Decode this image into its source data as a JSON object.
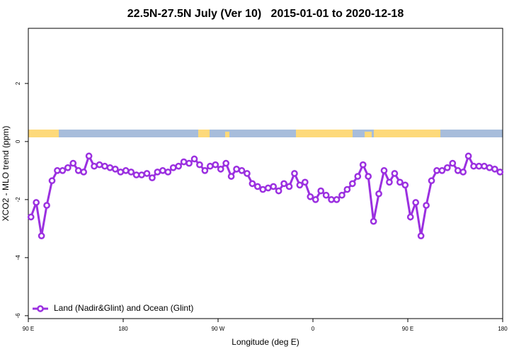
{
  "chart_data": {
    "type": "line",
    "title": "22.5N-27.5N July (Ver 10)   2015-01-01 to 2020-12-18",
    "x_label": "Longitude (deg E)",
    "y_label": "XCO2 - MLO trend (ppm)",
    "xlim": [
      90,
      540
    ],
    "ylim": [
      -6.1,
      3.9
    ],
    "xticks": [
      {
        "value": 90,
        "label": "90 E"
      },
      180,
      {
        "value": 270,
        "label": "90 W"
      },
      {
        "value": 360,
        "label": "0"
      },
      {
        "value": 450,
        "label": "90 E"
      },
      {
        "value": 540,
        "label": "180"
      }
    ],
    "yticks": [
      -6,
      -4,
      -2,
      0,
      2
    ],
    "legend": "bottom-left",
    "x": [
      92.5,
      97.5,
      102.5,
      107.5,
      112.5,
      117.5,
      122.5,
      127.5,
      132.5,
      137.5,
      142.5,
      147.5,
      152.5,
      157.5,
      162.5,
      167.5,
      172.5,
      177.5,
      182.5,
      187.5,
      192.5,
      197.5,
      202.5,
      207.5,
      212.5,
      217.5,
      222.5,
      227.5,
      232.5,
      237.5,
      242.5,
      247.5,
      252.5,
      257.5,
      262.5,
      267.5,
      272.5,
      277.5,
      282.5,
      287.5,
      292.5,
      297.5,
      302.5,
      307.5,
      312.5,
      317.5,
      322.5,
      327.5,
      332.5,
      337.5,
      342.5,
      347.5,
      352.5,
      357.5,
      362.5,
      367.5,
      372.5,
      377.5,
      382.5,
      387.5,
      392.5,
      397.5,
      402.5,
      407.5,
      412.5,
      417.5,
      422.5,
      427.5,
      432.5,
      437.5,
      442.5,
      447.5,
      452.5,
      457.5,
      462.5,
      467.5,
      472.5,
      477.5,
      482.5,
      487.5,
      492.5,
      497.5,
      502.5,
      507.5,
      512.5,
      517.5,
      522.5,
      527.5,
      532.5,
      537.5
    ],
    "series": [
      {
        "name": "Land (Nadir&Glint) and Ocean (Glint)",
        "color": "#9b30e0",
        "values": [
          -2.6,
          -2.1,
          -3.25,
          -2.2,
          -1.35,
          -1.0,
          -1.0,
          -0.9,
          -0.75,
          -1.0,
          -1.05,
          -0.5,
          -0.85,
          -0.8,
          -0.85,
          -0.9,
          -0.95,
          -1.05,
          -1.0,
          -1.05,
          -1.15,
          -1.15,
          -1.1,
          -1.25,
          -1.05,
          -1.0,
          -1.05,
          -0.9,
          -0.85,
          -0.7,
          -0.75,
          -0.6,
          -0.8,
          -1.0,
          -0.85,
          -0.8,
          -0.95,
          -0.75,
          -1.2,
          -0.95,
          -1.0,
          -1.1,
          -1.45,
          -1.55,
          -1.65,
          -1.6,
          -1.55,
          -1.7,
          -1.45,
          -1.55,
          -1.1,
          -1.5,
          -1.4,
          -1.9,
          -2.0,
          -1.7,
          -1.85,
          -2.0,
          -2.0,
          -1.85,
          -1.65,
          -1.45,
          -1.2,
          -0.8,
          -1.2,
          -2.75,
          -1.8,
          -1.0,
          -1.4,
          -1.1,
          -1.4,
          -1.5,
          -2.6,
          -2.1,
          -3.25,
          -2.2,
          -1.35,
          -1.0,
          -1.0,
          -0.9,
          -0.75,
          -1.0,
          -1.05,
          -0.5,
          -0.85,
          -0.85,
          -0.85,
          -0.9,
          -0.95,
          -1.05
        ]
      }
    ]
  }
}
